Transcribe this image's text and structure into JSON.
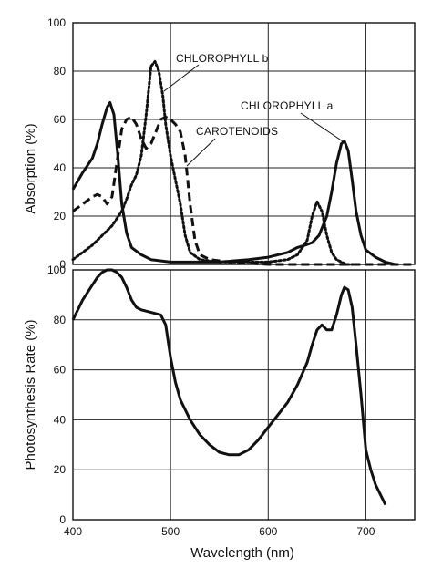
{
  "chart_data": [
    {
      "type": "line",
      "ylabel": "Absorption (%)",
      "xlim": [
        400,
        750
      ],
      "ylim": [
        0,
        100
      ],
      "yticks": [
        0,
        20,
        40,
        60,
        80,
        100
      ],
      "grid": true,
      "annotations": [
        {
          "text": "CHLOROPHYLL b",
          "series": "chlorophyll-b"
        },
        {
          "text": "CHLOROPHYLL a",
          "series": "chlorophyll-a"
        },
        {
          "text": "CAROTENOIDS",
          "series": "carotenoids"
        }
      ],
      "series": [
        {
          "name": "CHLOROPHYLL a",
          "key": "chlorophyll-a",
          "style": "solid",
          "x": [
            400,
            410,
            420,
            425,
            430,
            435,
            438,
            442,
            446,
            450,
            455,
            460,
            470,
            480,
            500,
            520,
            550,
            580,
            600,
            620,
            630,
            638,
            645,
            652,
            660,
            665,
            670,
            675,
            678,
            682,
            686,
            690,
            695,
            700,
            710,
            720,
            730
          ],
          "y": [
            31,
            38,
            44,
            50,
            58,
            65,
            67,
            62,
            45,
            25,
            13,
            7,
            4,
            2,
            1,
            1,
            1,
            2,
            3,
            5,
            7,
            8,
            9,
            12,
            20,
            30,
            42,
            50,
            51,
            47,
            35,
            22,
            12,
            6,
            3,
            1,
            0
          ]
        },
        {
          "name": "CHLOROPHYLL b",
          "key": "chlorophyll-b",
          "style": "dotted",
          "x": [
            400,
            410,
            420,
            430,
            440,
            450,
            455,
            460,
            465,
            470,
            475,
            480,
            484,
            488,
            492,
            495,
            500,
            505,
            510,
            515,
            520,
            530,
            550,
            600,
            620,
            630,
            640,
            645,
            650,
            655,
            660,
            665,
            670,
            680,
            690
          ],
          "y": [
            2,
            5,
            8,
            12,
            16,
            22,
            27,
            33,
            37,
            45,
            62,
            82,
            84,
            80,
            70,
            58,
            45,
            35,
            25,
            12,
            5,
            2,
            1,
            1,
            2,
            4,
            10,
            20,
            26,
            22,
            12,
            5,
            2,
            0,
            0
          ]
        },
        {
          "name": "CAROTENOIDS",
          "key": "carotenoids",
          "style": "dashed",
          "x": [
            400,
            410,
            420,
            425,
            430,
            435,
            440,
            445,
            450,
            455,
            460,
            465,
            470,
            475,
            480,
            485,
            490,
            495,
            500,
            505,
            510,
            515,
            520,
            525,
            530,
            540,
            560,
            600,
            640,
            700,
            750
          ],
          "y": [
            22,
            25,
            28,
            29,
            28,
            25,
            28,
            42,
            56,
            60,
            61,
            58,
            52,
            48,
            50,
            55,
            60,
            61,
            60,
            58,
            55,
            45,
            25,
            10,
            4,
            2,
            1,
            0,
            0,
            0,
            0
          ]
        }
      ]
    },
    {
      "type": "line",
      "xlabel": "Wavelength (nm)",
      "ylabel": "Photosynthesis Rate (%)",
      "xlim": [
        400,
        750
      ],
      "ylim": [
        0,
        100
      ],
      "xticks": [
        400,
        500,
        600,
        700
      ],
      "yticks": [
        0,
        20,
        40,
        60,
        80,
        100
      ],
      "grid": true,
      "series": [
        {
          "key": "action-spectrum",
          "style": "solid",
          "x": [
            400,
            410,
            420,
            425,
            430,
            435,
            440,
            445,
            450,
            455,
            460,
            465,
            470,
            480,
            490,
            495,
            500,
            505,
            510,
            520,
            530,
            540,
            550,
            560,
            570,
            580,
            590,
            600,
            610,
            620,
            630,
            640,
            645,
            650,
            655,
            660,
            665,
            670,
            675,
            678,
            682,
            686,
            690,
            695,
            700,
            705,
            710,
            720
          ],
          "y": [
            80,
            88,
            94,
            97,
            99,
            100,
            100,
            99,
            97,
            93,
            88,
            85,
            84,
            83,
            82,
            78,
            65,
            55,
            48,
            40,
            34,
            30,
            27,
            26,
            26,
            28,
            32,
            37,
            42,
            47,
            54,
            63,
            70,
            76,
            78,
            76,
            76,
            82,
            90,
            93,
            92,
            85,
            70,
            50,
            28,
            20,
            14,
            6
          ]
        }
      ]
    }
  ]
}
